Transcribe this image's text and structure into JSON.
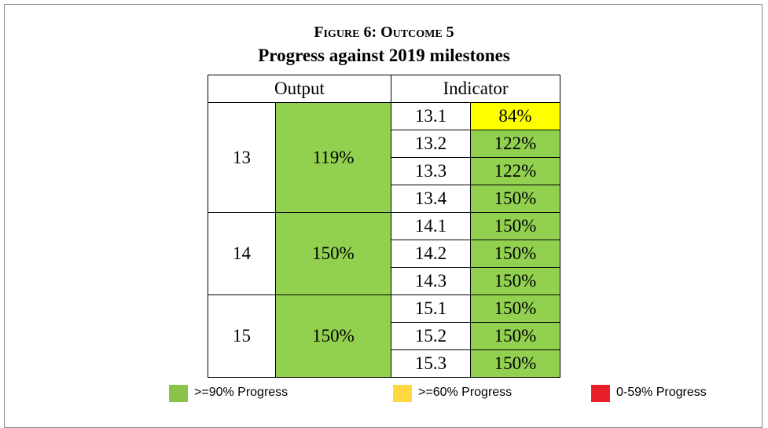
{
  "header": {
    "title": "Figure 6: Outcome 5",
    "subtitle": "Progress against 2019 milestones"
  },
  "table": {
    "columns": [
      "Output",
      "Indicator"
    ],
    "groups": [
      {
        "output": "13",
        "value": "119%",
        "color": "#92d050",
        "indicators": [
          {
            "id": "13.1",
            "value": "84%",
            "color": "#ffff00"
          },
          {
            "id": "13.2",
            "value": "122%",
            "color": "#92d050"
          },
          {
            "id": "13.3",
            "value": "122%",
            "color": "#92d050"
          },
          {
            "id": "13.4",
            "value": "150%",
            "color": "#92d050"
          }
        ]
      },
      {
        "output": "14",
        "value": "150%",
        "color": "#92d050",
        "indicators": [
          {
            "id": "14.1",
            "value": "150%",
            "color": "#92d050"
          },
          {
            "id": "14.2",
            "value": "150%",
            "color": "#92d050"
          },
          {
            "id": "14.3",
            "value": "150%",
            "color": "#92d050"
          }
        ]
      },
      {
        "output": "15",
        "value": "150%",
        "color": "#92d050",
        "indicators": [
          {
            "id": "15.1",
            "value": "150%",
            "color": "#92d050"
          },
          {
            "id": "15.2",
            "value": "150%",
            "color": "#92d050"
          },
          {
            "id": "15.3",
            "value": "150%",
            "color": "#92d050"
          }
        ]
      }
    ]
  },
  "legend": [
    {
      "label": ">=90% Progress",
      "color": "#8bc34a"
    },
    {
      "label": ">=60% Progress",
      "color": "#ffd740"
    },
    {
      "label": "0-59% Progress",
      "color": "#e8202a"
    }
  ]
}
